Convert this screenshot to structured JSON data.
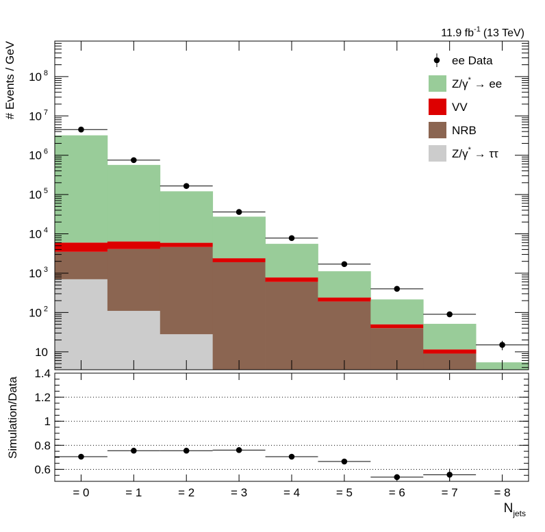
{
  "lumi_label": "11.9 fb",
  "lumi_exp": "-1",
  "lumi_energy": "(13 TeV)",
  "chart_data": [
    {
      "type": "bar",
      "stacked": true,
      "y_scale": "log",
      "ylim": [
        3.5,
        800000000
      ],
      "ylabel": "# Events / GeV",
      "categories": [
        "= 0",
        "= 1",
        "= 2",
        "= 3",
        "= 4",
        "= 5",
        "= 6",
        "= 7",
        "= 8"
      ],
      "y_ticks": [
        {
          "base": "10",
          "exp": "",
          "value": 10
        },
        {
          "base": "10",
          "exp": "2",
          "value": 100
        },
        {
          "base": "10",
          "exp": "3",
          "value": 1000
        },
        {
          "base": "10",
          "exp": "4",
          "value": 10000
        },
        {
          "base": "10",
          "exp": "5",
          "value": 100000
        },
        {
          "base": "10",
          "exp": "6",
          "value": 1000000
        },
        {
          "base": "10",
          "exp": "7",
          "value": 10000000
        },
        {
          "base": "10",
          "exp": "8",
          "value": 100000000
        }
      ],
      "stack": [
        {
          "key": "tautau",
          "color": "#cccccc",
          "values": [
            700,
            110,
            28,
            0,
            0,
            0,
            0,
            0,
            0
          ]
        },
        {
          "key": "nrb",
          "color": "#8b6551",
          "values": [
            2800,
            4000,
            4600,
            1900,
            600,
            190,
            40,
            9,
            2
          ]
        },
        {
          "key": "vv",
          "color": "#dd0000",
          "values": [
            2500,
            2300,
            1300,
            500,
            180,
            50,
            10,
            2.5,
            0.4
          ]
        },
        {
          "key": "zee",
          "color": "#99cc99",
          "values": [
            3200000,
            560000,
            115000,
            25000,
            4800,
            880,
            165,
            40,
            3
          ]
        }
      ],
      "data": {
        "values": [
          4500000,
          750000,
          165000,
          36000,
          7800,
          1700,
          400,
          90,
          15
        ],
        "y_err_low": [
          0,
          0,
          0,
          0,
          0,
          0,
          0,
          0,
          4
        ],
        "y_err_high": [
          0,
          0,
          0,
          0,
          0,
          0,
          0,
          0,
          4
        ]
      },
      "legend": {
        "position": "top-right",
        "entries": [
          {
            "key": "data",
            "label": "ee Data",
            "kind": "marker",
            "color": "#000000"
          },
          {
            "key": "zee",
            "label_prefix": "Z/γ",
            "label_star": "*",
            "label_suffix": " → ee",
            "kind": "fill",
            "color": "#99cc99"
          },
          {
            "key": "vv",
            "label": "VV",
            "kind": "fill",
            "color": "#dd0000"
          },
          {
            "key": "nrb",
            "label": "NRB",
            "kind": "fill",
            "color": "#8b6551"
          },
          {
            "key": "tautau",
            "label_prefix": "Z/γ",
            "label_star": "*",
            "label_suffix": " → ττ",
            "kind": "fill",
            "color": "#cccccc"
          }
        ]
      }
    },
    {
      "type": "scatter",
      "ylabel": "Simulation/Data",
      "xlabel_main": "N",
      "xlabel_sub": "jets",
      "ylim": [
        0.5,
        1.4
      ],
      "y_ticks": [
        "0.6",
        "0.8",
        "1",
        "1.2",
        "1.4"
      ],
      "gridlines": [
        0.6,
        0.8,
        1.0,
        1.2,
        1.4
      ],
      "grid_style": "dotted",
      "categories": [
        "= 0",
        "= 1",
        "= 2",
        "= 3",
        "= 4",
        "= 5",
        "= 6",
        "= 7",
        "= 8"
      ],
      "values": [
        0.705,
        0.755,
        0.755,
        0.76,
        0.705,
        0.665,
        0.535,
        0.555,
        null
      ],
      "y_err": [
        0,
        0,
        0,
        0,
        0,
        0,
        0.02,
        0.05,
        null
      ]
    }
  ]
}
